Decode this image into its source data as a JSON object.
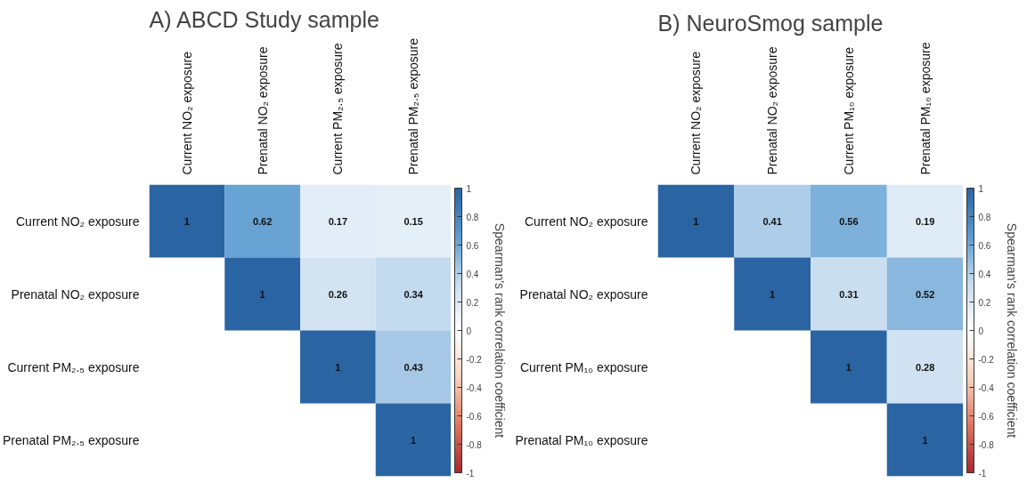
{
  "chart_data": [
    {
      "type": "heatmap",
      "title": "A)  ABCD Study sample",
      "clabel": "Spearman's rank correlation coefficient",
      "categories": [
        "Current NO₂ exposure",
        "Prenatal NO₂ exposure",
        "Current PM₂.₅ exposure",
        "Prenatal PM₂.₅ exposure"
      ],
      "y_categories": [
        "Current NO₂ exposure",
        "Prenatal NO₂ exposure",
        "Current PM₂.₅ exposure",
        "Prenatal PM₂.₅ exposure"
      ],
      "cells": [
        [
          1,
          0.62,
          0.17,
          0.15
        ],
        [
          null,
          1,
          0.26,
          0.34
        ],
        [
          null,
          null,
          1,
          0.43
        ],
        [
          null,
          null,
          null,
          1
        ]
      ],
      "clim": [
        -1,
        1
      ],
      "cticks": [
        -1,
        -0.8,
        -0.6,
        -0.4,
        -0.2,
        0,
        0.2,
        0.4,
        0.6,
        0.8,
        1
      ],
      "data_labels": true,
      "grid": false
    },
    {
      "type": "heatmap",
      "title": "B)  NeuroSmog sample",
      "clabel": "Spearman's rank correlation coefficient",
      "categories": [
        "Current NO₂ exposure",
        "Prenatal NO₂ exposure",
        "Current PM₁₀ exposure",
        "Prenatal PM₁₀ exposure"
      ],
      "y_categories": [
        "Current NO₂ exposure",
        "Prenatal NO₂ exposure",
        "Current PM₁₀ exposure",
        "Prenatal PM₁₀ exposure"
      ],
      "cells": [
        [
          1,
          0.41,
          0.56,
          0.19
        ],
        [
          null,
          1,
          0.31,
          0.52
        ],
        [
          null,
          null,
          1,
          0.28
        ],
        [
          null,
          null,
          null,
          1
        ]
      ],
      "clim": [
        -1,
        1
      ],
      "cticks": [
        -1,
        -0.8,
        -0.6,
        -0.4,
        -0.2,
        0,
        0.2,
        0.4,
        0.6,
        0.8,
        1
      ],
      "data_labels": true,
      "grid": false
    }
  ]
}
